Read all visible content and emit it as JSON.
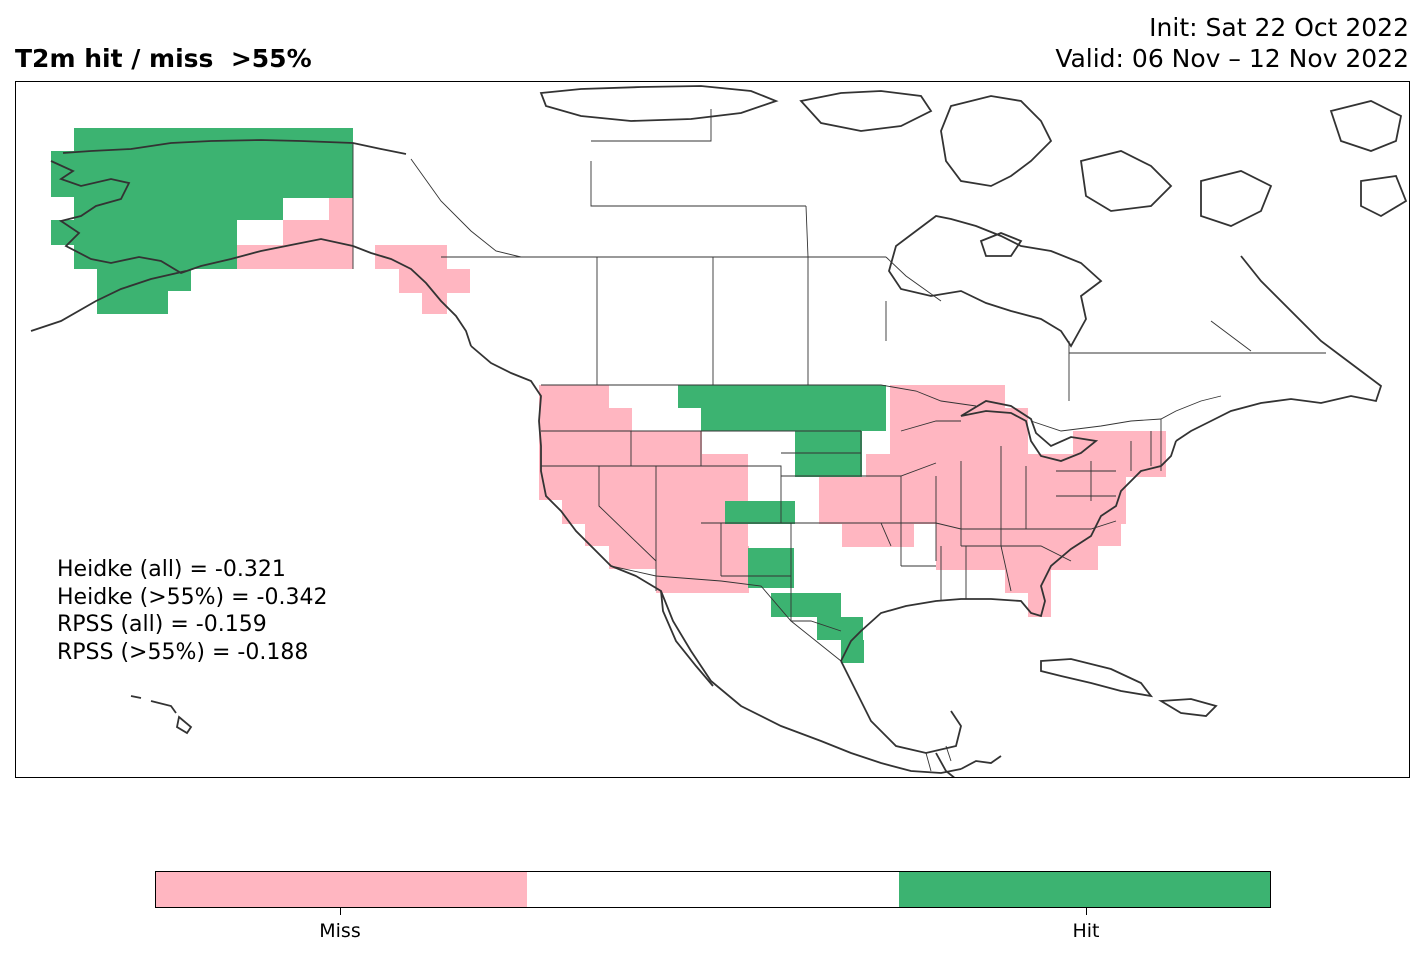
{
  "title": "T2m hit / miss  >55%",
  "init": "Init: Sat 22 Oct 2022",
  "valid": "Valid: 06 Nov – 12 Nov 2022",
  "stats": [
    "Heidke (all) = -0.321",
    "Heidke (>55%) = -0.342",
    "RPSS (all) = -0.159",
    "RPSS (>55%) = -0.188"
  ],
  "colors": {
    "miss": "#ffb6c1",
    "neutral": "#ffffff",
    "hit": "#3cb371",
    "coast": "#333333"
  },
  "legend": {
    "miss_label": "Miss",
    "hit_label": "Hit"
  }
}
